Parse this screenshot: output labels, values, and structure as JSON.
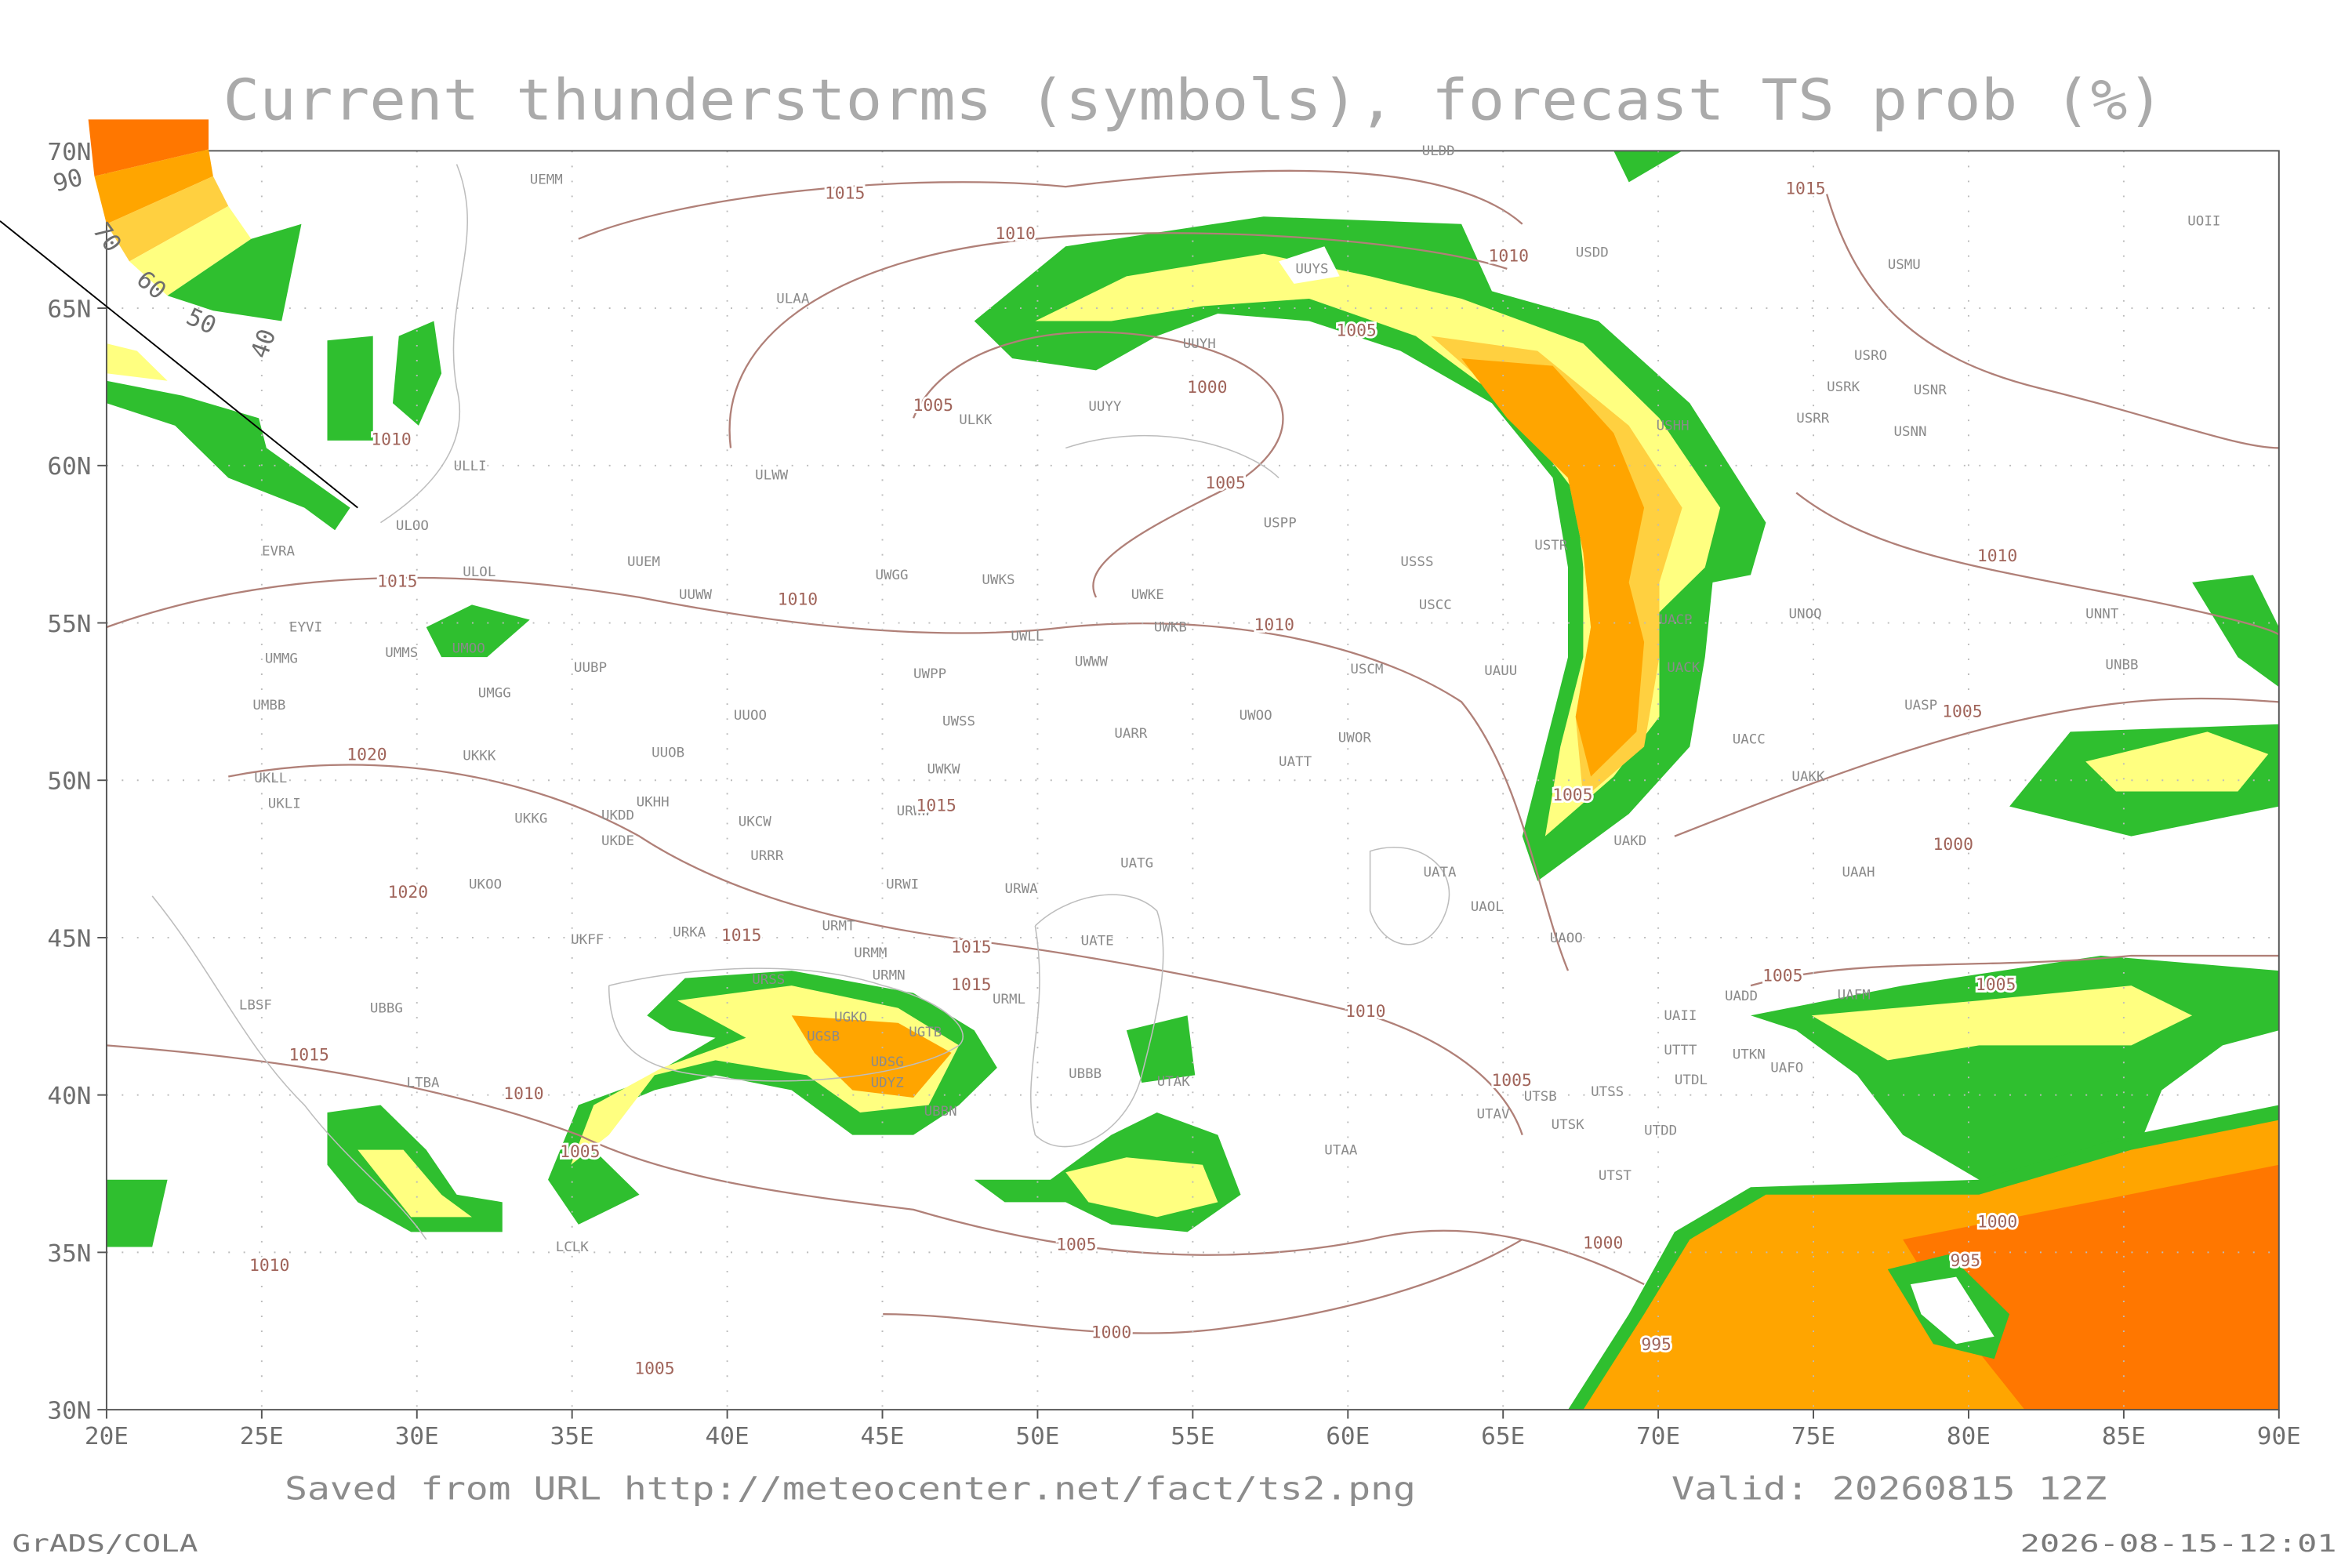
{
  "header": {
    "title": "Current thunderstorms (symbols), forecast TS prob (%)"
  },
  "legend": {
    "labels": [
      90,
      70,
      60,
      50,
      40
    ]
  },
  "axes": {
    "lat_labels": [
      "70N",
      "65N",
      "60N",
      "55N",
      "50N",
      "45N",
      "40N",
      "35N",
      "30N"
    ],
    "lon_labels": [
      "20E",
      "25E",
      "30E",
      "35E",
      "40E",
      "45E",
      "50E",
      "55E",
      "60E",
      "65E",
      "70E",
      "75E",
      "80E",
      "85E",
      "90E"
    ]
  },
  "stations": [
    "ULDD",
    "UEMM",
    "ULAA",
    "USDD",
    "UOII",
    "USMU",
    "UUYS",
    "UUYH",
    "USRO",
    "USRK",
    "USNR",
    "USRR",
    "USNN",
    "ULKK",
    "UUYY",
    "USHH",
    "ULLI",
    "ULWW",
    "USPP",
    "ULOO",
    "EVRA",
    "USTR",
    "USSS",
    "UUEM",
    "ULOL",
    "UWGG",
    "UWKS",
    "UWKE",
    "UUWW",
    "USCC",
    "UNOQ",
    "UNNT",
    "EYVI",
    "UWKB",
    "UACP",
    "UWLL",
    "UMMG",
    "UMMS",
    "UMOO",
    "UUBP",
    "UWWW",
    "USCM",
    "UAUU",
    "UACK",
    "UNBB",
    "UMBB",
    "UWPP",
    "UMGG",
    "UUOO",
    "UASP",
    "UWSS",
    "UARR",
    "UWOO",
    "UWOR",
    "UACC",
    "UKKK",
    "UUOB",
    "UATT",
    "UWKW",
    "UAKK",
    "UKLL",
    "UKHH",
    "UKLI",
    "URWW",
    "UKKG",
    "UKDD",
    "UKCW",
    "UKDE",
    "UAKD",
    "URRR",
    "UATG",
    "UATA",
    "UAAH",
    "UKOO",
    "URWI",
    "URWA",
    "UAOL",
    "UKFF",
    "URKA",
    "URMT",
    "UATE",
    "UAOO",
    "URMM",
    "URMN",
    "UBBG",
    "LBSF",
    "URSS",
    "URML",
    "UGKO",
    "UGTB",
    "UGSB",
    "UDSG",
    "UDYZ",
    "UBBN",
    "UBBB",
    "UTAK",
    "UAII",
    "UADD",
    "UAFM",
    "UTTT",
    "UTKN",
    "UAFO",
    "UTDL",
    "UTSS",
    "UTSB",
    "UTAV",
    "UTSK",
    "UTDD",
    "UTST",
    "UTAA",
    "LTBA",
    "LCLK"
  ],
  "isobars": [
    1015,
    1010,
    1015,
    1010,
    1005,
    1000,
    1005,
    1010,
    1005,
    1015,
    1010,
    1010,
    1010,
    1005,
    1020,
    1005,
    1015,
    1000,
    1020,
    1015,
    1015,
    1015,
    1005,
    1005,
    1010,
    1015,
    1010,
    1005,
    1005,
    1000,
    995,
    1005,
    1000,
    1010,
    1000,
    995,
    1005
  ],
  "footer": {
    "source": "Saved from URL http://meteocenter.net/fact/ts2.png",
    "valid": "Valid: 20260815 12Z",
    "software": "GrADS/COLA",
    "timestamp": "2026-08-15-12:01"
  }
}
